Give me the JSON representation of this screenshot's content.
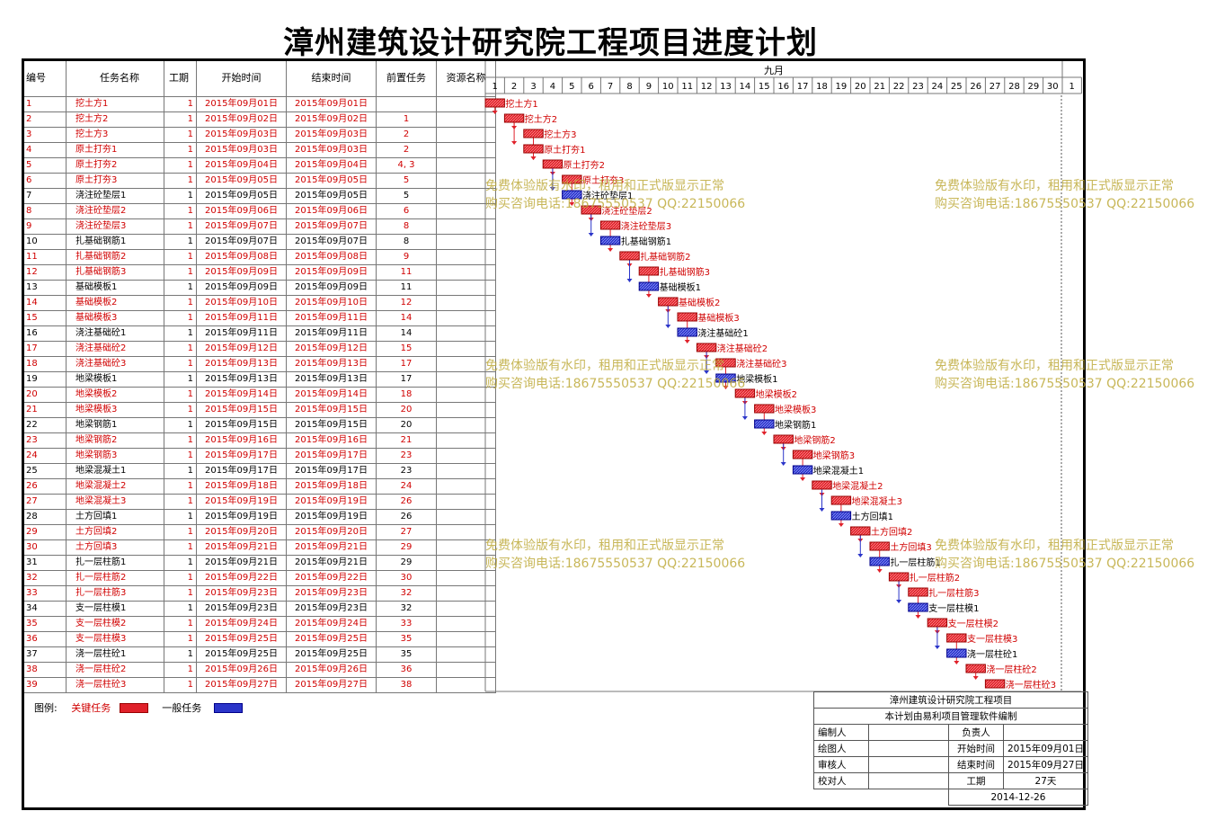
{
  "title": "漳州建筑设计研究院工程项目进度计划",
  "columns": [
    "编号",
    "任务名称",
    "工期",
    "开始时间",
    "结束时间",
    "前置任务",
    "资源名称"
  ],
  "month_label": "九月",
  "days": [
    "1",
    "2",
    "3",
    "4",
    "5",
    "6",
    "7",
    "8",
    "9",
    "10",
    "11",
    "12",
    "13",
    "14",
    "15",
    "16",
    "17",
    "18",
    "19",
    "20",
    "21",
    "22",
    "23",
    "24",
    "25",
    "26",
    "27",
    "28",
    "29",
    "30",
    "1"
  ],
  "colors": {
    "critical": "#e0212a",
    "normal": "#2b35c9",
    "critical_text": "#d00000",
    "watermark": "#beaa3c"
  },
  "chart_data": {
    "type": "gantt",
    "title": "漳州建筑设计研究院工程项目进度计划",
    "x_unit": "day of 九月",
    "tasks": [
      {
        "id": "1",
        "name": "挖土方1",
        "duration": "1",
        "start": "2015年09月01日",
        "end": "2015年09月01日",
        "pred": "",
        "critical": true,
        "day": 1
      },
      {
        "id": "2",
        "name": "挖土方2",
        "duration": "1",
        "start": "2015年09月02日",
        "end": "2015年09月02日",
        "pred": "1",
        "critical": true,
        "day": 2
      },
      {
        "id": "3",
        "name": "挖土方3",
        "duration": "1",
        "start": "2015年09月03日",
        "end": "2015年09月03日",
        "pred": "2",
        "critical": true,
        "day": 3
      },
      {
        "id": "4",
        "name": "原土打夯1",
        "duration": "1",
        "start": "2015年09月03日",
        "end": "2015年09月03日",
        "pred": "2",
        "critical": true,
        "day": 3
      },
      {
        "id": "5",
        "name": "原土打夯2",
        "duration": "1",
        "start": "2015年09月04日",
        "end": "2015年09月04日",
        "pred": "4, 3",
        "critical": true,
        "day": 4
      },
      {
        "id": "6",
        "name": "原土打夯3",
        "duration": "1",
        "start": "2015年09月05日",
        "end": "2015年09月05日",
        "pred": "5",
        "critical": true,
        "day": 5
      },
      {
        "id": "7",
        "name": "浇注砼垫层1",
        "duration": "1",
        "start": "2015年09月05日",
        "end": "2015年09月05日",
        "pred": "5",
        "critical": false,
        "day": 5
      },
      {
        "id": "8",
        "name": "浇注砼垫层2",
        "duration": "1",
        "start": "2015年09月06日",
        "end": "2015年09月06日",
        "pred": "6",
        "critical": true,
        "day": 6
      },
      {
        "id": "9",
        "name": "浇注砼垫层3",
        "duration": "1",
        "start": "2015年09月07日",
        "end": "2015年09月07日",
        "pred": "8",
        "critical": true,
        "day": 7
      },
      {
        "id": "10",
        "name": "扎基础钢筋1",
        "duration": "1",
        "start": "2015年09月07日",
        "end": "2015年09月07日",
        "pred": "8",
        "critical": false,
        "day": 7
      },
      {
        "id": "11",
        "name": "扎基础钢筋2",
        "duration": "1",
        "start": "2015年09月08日",
        "end": "2015年09月08日",
        "pred": "9",
        "critical": true,
        "day": 8
      },
      {
        "id": "12",
        "name": "扎基础钢筋3",
        "duration": "1",
        "start": "2015年09月09日",
        "end": "2015年09月09日",
        "pred": "11",
        "critical": true,
        "day": 9
      },
      {
        "id": "13",
        "name": "基础模板1",
        "duration": "1",
        "start": "2015年09月09日",
        "end": "2015年09月09日",
        "pred": "11",
        "critical": false,
        "day": 9
      },
      {
        "id": "14",
        "name": "基础模板2",
        "duration": "1",
        "start": "2015年09月10日",
        "end": "2015年09月10日",
        "pred": "12",
        "critical": true,
        "day": 10
      },
      {
        "id": "15",
        "name": "基础模板3",
        "duration": "1",
        "start": "2015年09月11日",
        "end": "2015年09月11日",
        "pred": "14",
        "critical": true,
        "day": 11
      },
      {
        "id": "16",
        "name": "浇注基础砼1",
        "duration": "1",
        "start": "2015年09月11日",
        "end": "2015年09月11日",
        "pred": "14",
        "critical": false,
        "day": 11
      },
      {
        "id": "17",
        "name": "浇注基础砼2",
        "duration": "1",
        "start": "2015年09月12日",
        "end": "2015年09月12日",
        "pred": "15",
        "critical": true,
        "day": 12
      },
      {
        "id": "18",
        "name": "浇注基础砼3",
        "duration": "1",
        "start": "2015年09月13日",
        "end": "2015年09月13日",
        "pred": "17",
        "critical": true,
        "day": 13
      },
      {
        "id": "19",
        "name": "地梁模板1",
        "duration": "1",
        "start": "2015年09月13日",
        "end": "2015年09月13日",
        "pred": "17",
        "critical": false,
        "day": 13
      },
      {
        "id": "20",
        "name": "地梁模板2",
        "duration": "1",
        "start": "2015年09月14日",
        "end": "2015年09月14日",
        "pred": "18",
        "critical": true,
        "day": 14
      },
      {
        "id": "21",
        "name": "地梁模板3",
        "duration": "1",
        "start": "2015年09月15日",
        "end": "2015年09月15日",
        "pred": "20",
        "critical": true,
        "day": 15
      },
      {
        "id": "22",
        "name": "地梁钢筋1",
        "duration": "1",
        "start": "2015年09月15日",
        "end": "2015年09月15日",
        "pred": "20",
        "critical": false,
        "day": 15
      },
      {
        "id": "23",
        "name": "地梁钢筋2",
        "duration": "1",
        "start": "2015年09月16日",
        "end": "2015年09月16日",
        "pred": "21",
        "critical": true,
        "day": 16
      },
      {
        "id": "24",
        "name": "地梁钢筋3",
        "duration": "1",
        "start": "2015年09月17日",
        "end": "2015年09月17日",
        "pred": "23",
        "critical": true,
        "day": 17
      },
      {
        "id": "25",
        "name": "地梁混凝土1",
        "duration": "1",
        "start": "2015年09月17日",
        "end": "2015年09月17日",
        "pred": "23",
        "critical": false,
        "day": 17
      },
      {
        "id": "26",
        "name": "地梁混凝土2",
        "duration": "1",
        "start": "2015年09月18日",
        "end": "2015年09月18日",
        "pred": "24",
        "critical": true,
        "day": 18
      },
      {
        "id": "27",
        "name": "地梁混凝土3",
        "duration": "1",
        "start": "2015年09月19日",
        "end": "2015年09月19日",
        "pred": "26",
        "critical": true,
        "day": 19
      },
      {
        "id": "28",
        "name": "土方回填1",
        "duration": "1",
        "start": "2015年09月19日",
        "end": "2015年09月19日",
        "pred": "26",
        "critical": false,
        "day": 19
      },
      {
        "id": "29",
        "name": "土方回填2",
        "duration": "1",
        "start": "2015年09月20日",
        "end": "2015年09月20日",
        "pred": "27",
        "critical": true,
        "day": 20
      },
      {
        "id": "30",
        "name": "土方回填3",
        "duration": "1",
        "start": "2015年09月21日",
        "end": "2015年09月21日",
        "pred": "29",
        "critical": true,
        "day": 21
      },
      {
        "id": "31",
        "name": "扎一层柱筋1",
        "duration": "1",
        "start": "2015年09月21日",
        "end": "2015年09月21日",
        "pred": "29",
        "critical": false,
        "day": 21
      },
      {
        "id": "32",
        "name": "扎一层柱筋2",
        "duration": "1",
        "start": "2015年09月22日",
        "end": "2015年09月22日",
        "pred": "30",
        "critical": true,
        "day": 22
      },
      {
        "id": "33",
        "name": "扎一层柱筋3",
        "duration": "1",
        "start": "2015年09月23日",
        "end": "2015年09月23日",
        "pred": "32",
        "critical": true,
        "day": 23
      },
      {
        "id": "34",
        "name": "支一层柱模1",
        "duration": "1",
        "start": "2015年09月23日",
        "end": "2015年09月23日",
        "pred": "32",
        "critical": false,
        "day": 23
      },
      {
        "id": "35",
        "name": "支一层柱模2",
        "duration": "1",
        "start": "2015年09月24日",
        "end": "2015年09月24日",
        "pred": "33",
        "critical": true,
        "day": 24
      },
      {
        "id": "36",
        "name": "支一层柱模3",
        "duration": "1",
        "start": "2015年09月25日",
        "end": "2015年09月25日",
        "pred": "35",
        "critical": true,
        "day": 25
      },
      {
        "id": "37",
        "name": "浇一层柱砼1",
        "duration": "1",
        "start": "2015年09月25日",
        "end": "2015年09月25日",
        "pred": "35",
        "critical": false,
        "day": 25
      },
      {
        "id": "38",
        "name": "浇一层柱砼2",
        "duration": "1",
        "start": "2015年09月26日",
        "end": "2015年09月26日",
        "pred": "36",
        "critical": true,
        "day": 26
      },
      {
        "id": "39",
        "name": "浇一层柱砼3",
        "duration": "1",
        "start": "2015年09月27日",
        "end": "2015年09月27日",
        "pred": "38",
        "critical": true,
        "day": 27
      }
    ]
  },
  "watermark": {
    "line1": "免费体验版有水印，租用和正式版显示正常",
    "line2": "购买咨询电话:18675550537 QQ:22150066"
  },
  "legend": {
    "label": "图例:",
    "critical": "关键任务",
    "normal": "一般任务"
  },
  "info": {
    "project": "漳州建筑设计研究院工程项目",
    "note": "本计划由易利项目管理软件编制",
    "compiler_label": "编制人",
    "compiler": "",
    "owner_label": "负责人",
    "owner": "",
    "drawer_label": "绘图人",
    "drawer": "",
    "start_label": "开始时间",
    "start": "2015年09月01日",
    "reviewer_label": "审核人",
    "reviewer": "",
    "end_label": "结束时间",
    "end": "2015年09月27日",
    "checker_label": "校对人",
    "checker": "",
    "duration_label": "工期",
    "duration": "27天",
    "date": "2014-12-26"
  }
}
